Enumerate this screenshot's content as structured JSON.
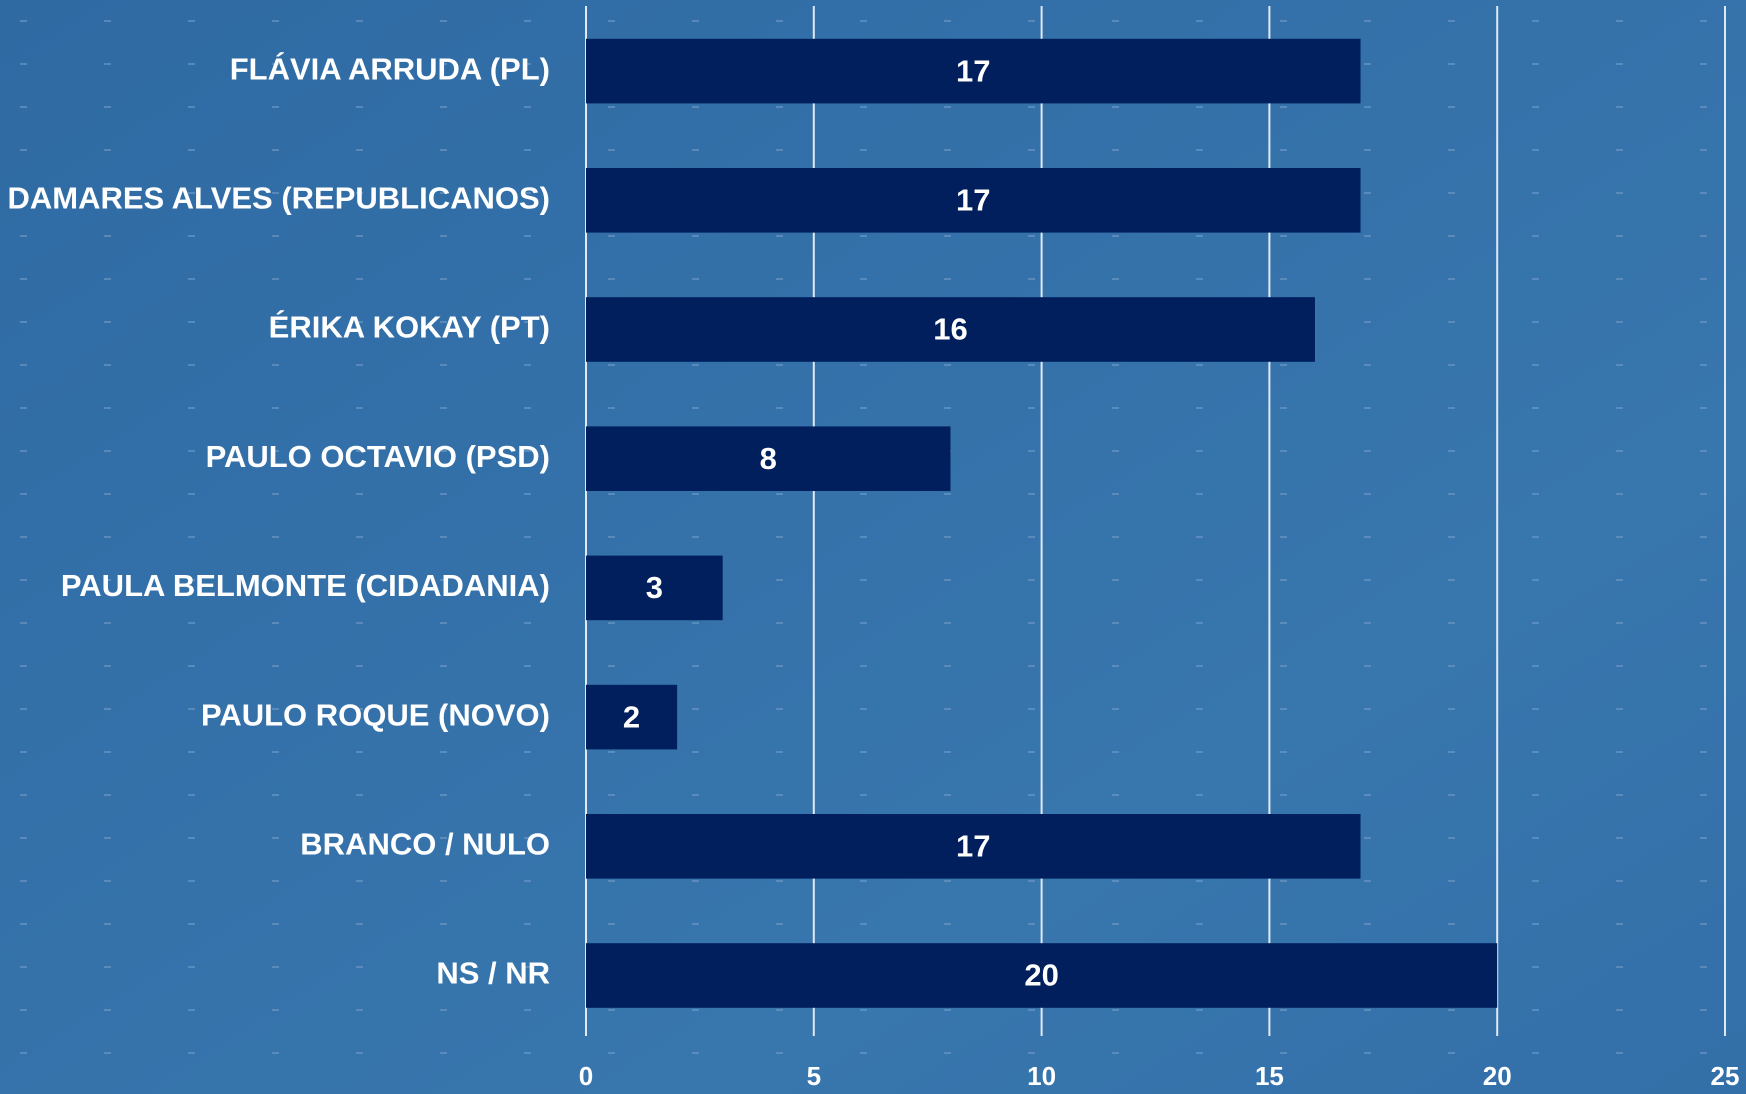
{
  "chart_data": {
    "type": "bar",
    "orientation": "horizontal",
    "categories": [
      "FLÁVIA ARRUDA (PL)",
      "DAMARES ALVES (REPUBLICANOS)",
      "ÉRIKA KOKAY (PT)",
      "PAULO OCTAVIO (PSD)",
      "PAULA BELMONTE (CIDADANIA)",
      "PAULO ROQUE (NOVO)",
      "BRANCO / NULO",
      "NS / NR"
    ],
    "values": [
      17,
      17,
      16,
      8,
      3,
      2,
      17,
      20
    ],
    "color": "#001f5c",
    "xlim": [
      0,
      25
    ],
    "xticks": [
      0,
      5,
      10,
      15,
      20,
      25
    ],
    "grid": true
  }
}
